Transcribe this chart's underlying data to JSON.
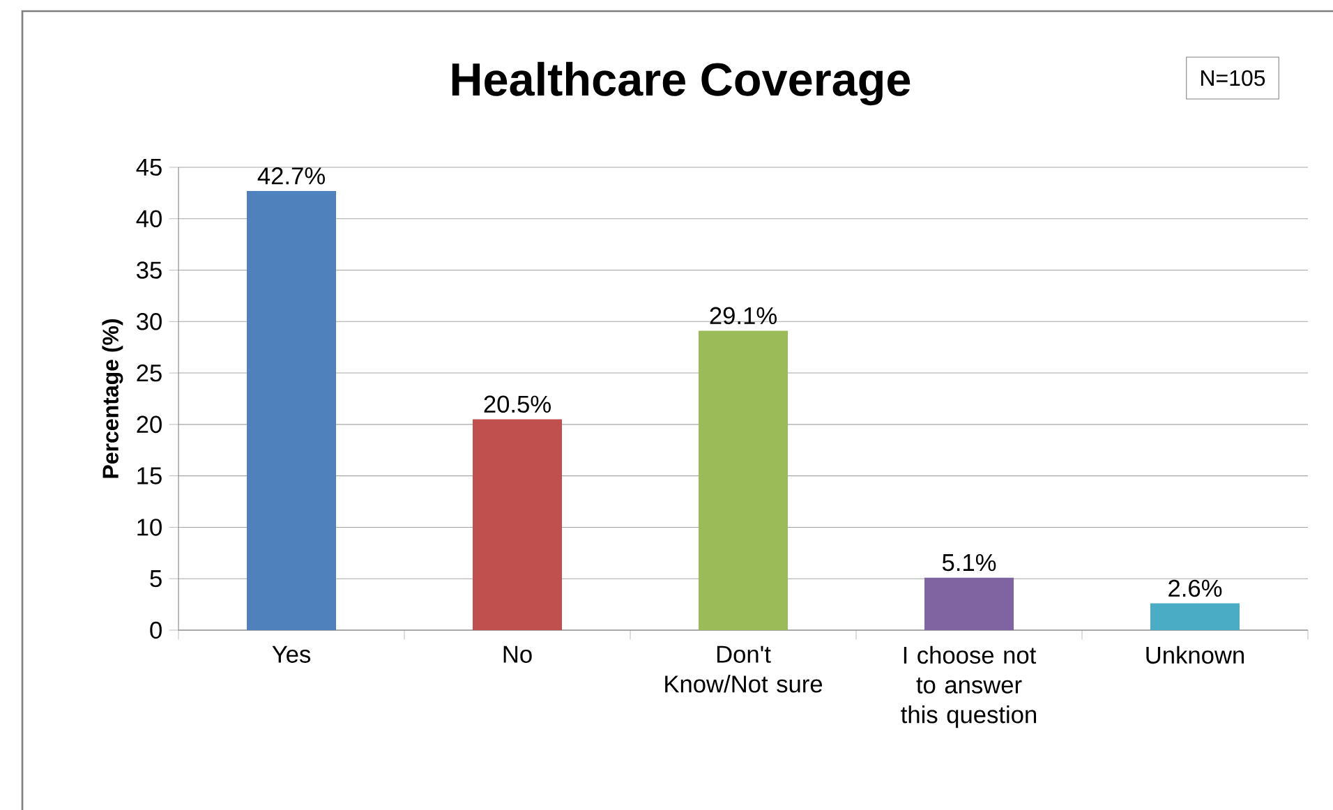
{
  "chart_data": {
    "type": "bar",
    "title": "Healthcare Coverage",
    "ylabel": "Percentage (%)",
    "categories": [
      "Yes",
      "No",
      "Don't Know/Not sure",
      "I choose not to answer this question",
      "Unknown"
    ],
    "values": [
      42.7,
      20.5,
      29.1,
      5.1,
      2.6
    ],
    "colors": [
      "#4f81bd",
      "#c0504d",
      "#9bbb59",
      "#8064a2",
      "#4bacc6"
    ],
    "value_labels": [
      "42.7%",
      "20.5%",
      "29.1%",
      "5.1%",
      "2.6%"
    ],
    "ylim": [
      0,
      45
    ],
    "yticks": [
      0,
      5,
      10,
      15,
      20,
      25,
      30,
      35,
      40,
      45
    ],
    "grid": "y",
    "annotations": [
      "N=105"
    ]
  }
}
